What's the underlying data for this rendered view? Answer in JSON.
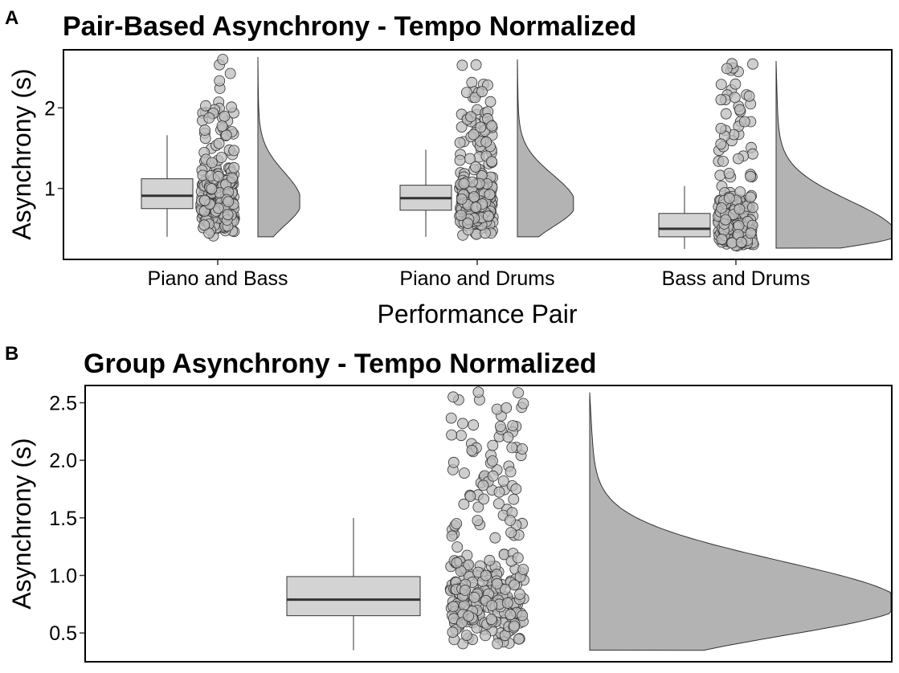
{
  "chart_data": [
    {
      "panel_label": "A",
      "type": "raincloud",
      "title": "Pair-Based Asynchrony - Tempo Normalized",
      "xlabel": "Performance Pair",
      "ylabel": "Asynchrony (s)",
      "ylim": [
        0.12,
        2.72
      ],
      "yticks": [
        1,
        2
      ],
      "ytick_labels": [
        "1",
        "2"
      ],
      "grid": false,
      "colors": {
        "box_fill": "#d3d3d3",
        "point_fill": "#bdbdbd",
        "density_fill": "#b3b3b3",
        "outline": "#333333"
      },
      "categories": [
        "Piano and Bass",
        "Piano and Drums",
        "Bass and Drums"
      ],
      "series": [
        {
          "box": {
            "whisker_low": 0.4,
            "q1": 0.75,
            "median": 0.91,
            "q3": 1.12,
            "whisker_high": 1.66
          },
          "range": [
            0.4,
            2.63
          ],
          "mode": 0.83,
          "peak": 0.62,
          "clusters": [
            [
              0.4,
              1.3,
              0.8
            ],
            [
              1.3,
              2.0,
              0.15
            ],
            [
              2.0,
              2.63,
              0.05
            ]
          ]
        },
        {
          "box": {
            "whisker_low": 0.4,
            "q1": 0.73,
            "median": 0.88,
            "q3": 1.04,
            "whisker_high": 1.48
          },
          "range": [
            0.4,
            2.6
          ],
          "mode": 0.8,
          "peak": 0.72,
          "clusters": [
            [
              0.4,
              1.3,
              0.8
            ],
            [
              1.3,
              2.0,
              0.15
            ],
            [
              2.0,
              2.6,
              0.05
            ]
          ]
        },
        {
          "box": {
            "whisker_low": 0.25,
            "q1": 0.4,
            "median": 0.5,
            "q3": 0.69,
            "whisker_high": 1.03
          },
          "range": [
            0.26,
            2.58
          ],
          "mode": 0.42,
          "peak": 1.0,
          "clusters": [
            [
              0.26,
              1.0,
              0.8
            ],
            [
              1.0,
              1.8,
              0.12
            ],
            [
              1.8,
              2.58,
              0.08
            ]
          ]
        }
      ]
    },
    {
      "panel_label": "B",
      "type": "raincloud",
      "title": "Group Asynchrony - Tempo Normalized",
      "xlabel": "",
      "ylabel": "Asynchrony (s)",
      "ylim": [
        0.25,
        2.65
      ],
      "yticks": [
        0.5,
        1.0,
        1.5,
        2.0,
        2.5
      ],
      "ytick_labels": [
        "0.5",
        "1.0",
        "1.5",
        "2.0",
        "2.5"
      ],
      "grid": false,
      "colors": {
        "box_fill": "#d3d3d3",
        "point_fill": "#bdbdbd",
        "density_fill": "#b3b3b3",
        "outline": "#333333"
      },
      "categories": [
        ""
      ],
      "series": [
        {
          "box": {
            "whisker_low": 0.35,
            "q1": 0.65,
            "median": 0.79,
            "q3": 0.99,
            "whisker_high": 1.5
          },
          "range": [
            0.35,
            2.59
          ],
          "mode": 0.75,
          "peak": 1.0,
          "clusters": [
            [
              0.35,
              1.3,
              0.75
            ],
            [
              1.3,
              2.0,
              0.15
            ],
            [
              2.0,
              2.6,
              0.1
            ]
          ]
        }
      ]
    }
  ]
}
